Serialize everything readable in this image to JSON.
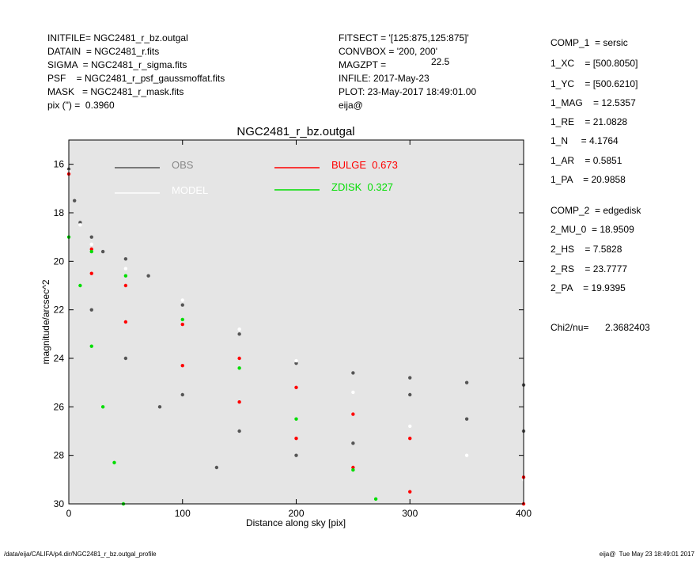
{
  "header": {
    "left": [
      "INITFILE= NGC2481_r_bz.outgal",
      "DATAIN  = NGC2481_r.fits",
      "SIGMA  = NGC2481_r_sigma.fits",
      "PSF    = NGC2481_r_psf_gaussmoffat.fits",
      "MASK   = NGC2481_r_mask.fits",
      "pix (\") =  0.3960"
    ],
    "middle": [
      "FITSECT = '[125:875,125:875]'",
      "CONVBOX = '200, 200'",
      "MAGZPT =",
      "INFILE: 2017-May-23",
      "PLOT: 23-May-2017 18:49:01.00",
      "eija@"
    ],
    "magzpt": "22.5"
  },
  "params": [
    "COMP_1  = sersic",
    "1_XC    = [500.8050]",
    "1_YC    = [500.6210]",
    "1_MAG    = 12.5357",
    "1_RE    = 21.0828",
    "1_N     = 4.1764",
    "1_AR    = 0.5851",
    "1_PA    = 20.9858",
    "COMP_2  = edgedisk",
    "2_MU_0  = 18.9509",
    "2_HS    = 7.5828",
    "2_RS    = 23.7777",
    "2_PA    = 19.9395"
  ],
  "chi2": {
    "label": "Chi2/nu=",
    "value": "2.3682403"
  },
  "footer": {
    "left": "/data/eija/CALIFA/p4.dir/NGC2481_r_bz.outgal_profile",
    "right": "eija@  Tue May 23 18:49:01 2017"
  },
  "chart_data": {
    "type": "scatter",
    "title": "NGC2481_r_bz.outgal",
    "x_label": "Distance along sky [pix]",
    "y_label": "magnitude/arcsec^2",
    "xlim": [
      0,
      400
    ],
    "ylim": [
      30,
      15
    ],
    "xticks": [
      0,
      100,
      200,
      300,
      400
    ],
    "yticks": [
      16,
      18,
      20,
      22,
      24,
      26,
      28,
      30
    ],
    "series": [
      {
        "name": "OBS",
        "color": "#555555",
        "x": [
          0,
          5,
          10,
          20,
          30,
          50,
          70,
          100,
          150,
          200,
          250,
          300,
          350,
          400,
          20,
          50,
          80,
          100,
          130,
          150,
          200,
          250,
          300,
          350,
          400
        ],
        "values": [
          16.2,
          17.5,
          18.4,
          19,
          19.6,
          19.9,
          20.6,
          21.8,
          23,
          24.2,
          24.6,
          24.8,
          25,
          25.1,
          22,
          24,
          26,
          25.5,
          28.5,
          27,
          28,
          27.5,
          25.5,
          26.5,
          27
        ]
      },
      {
        "name": "MODEL",
        "color": "#ffffff",
        "x": [
          0,
          10,
          20,
          50,
          100,
          150,
          200,
          250,
          300,
          350,
          400
        ],
        "values": [
          16.3,
          18.5,
          19.3,
          20.3,
          21.6,
          22.8,
          24.1,
          25.4,
          26.8,
          28,
          29
        ]
      },
      {
        "name": "BULGE  0.673",
        "color": "#ff0000",
        "x": [
          0,
          20,
          50,
          100,
          150,
          200,
          250,
          300,
          400,
          20,
          50,
          100,
          150,
          200,
          250,
          300,
          400
        ],
        "values": [
          16.4,
          19.5,
          21,
          22.6,
          24,
          25.2,
          26.3,
          27.3,
          28.9,
          20.5,
          22.5,
          24.3,
          25.8,
          27.3,
          28.5,
          29.5,
          30
        ]
      },
      {
        "name": "ZDISK  0.327",
        "color": "#00dd00",
        "x": [
          0,
          20,
          50,
          100,
          150,
          200,
          250,
          270,
          10,
          20,
          30,
          40,
          48
        ],
        "values": [
          19,
          19.6,
          20.6,
          22.4,
          24.4,
          26.5,
          28.6,
          29.8,
          21,
          23.5,
          26,
          28.3,
          30
        ]
      }
    ]
  }
}
